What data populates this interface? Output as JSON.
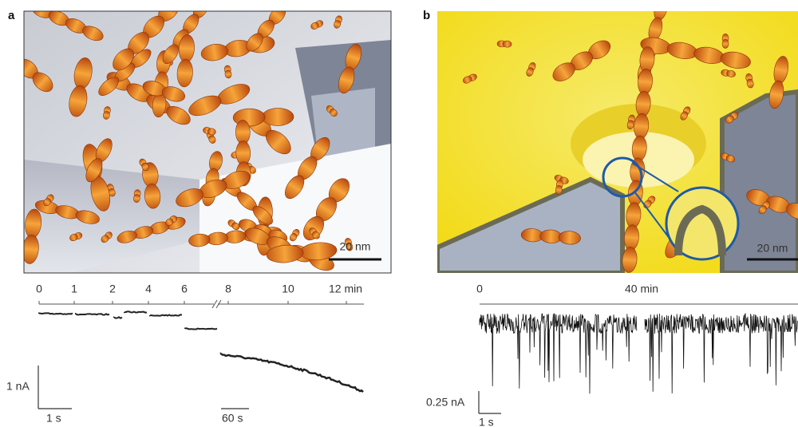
{
  "panels": [
    {
      "label": "a",
      "scale_bar": "20 nm",
      "time_axis": [
        "0",
        "1",
        "2",
        "4",
        "6",
        "8",
        "10",
        "12 min"
      ],
      "current_scale": "1 nA",
      "time_scales": [
        "1 s",
        "60 s"
      ]
    },
    {
      "label": "b",
      "scale_bar": "20 nm",
      "time_axis": [
        "0",
        "40 min"
      ],
      "current_scale": "0.25 nA",
      "time_scales": [
        "1 s"
      ]
    }
  ]
}
